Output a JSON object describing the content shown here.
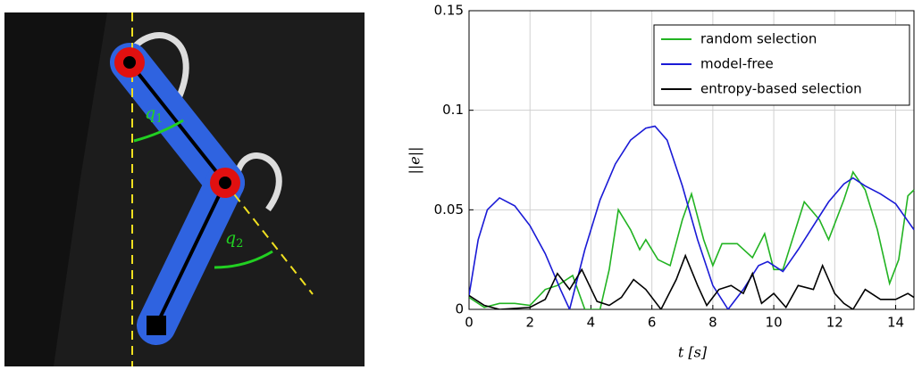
{
  "photo": {
    "joint_labels": [
      {
        "symbol": "q",
        "index": "1"
      },
      {
        "symbol": "q",
        "index": "2"
      }
    ]
  },
  "chart_data": {
    "type": "line",
    "x_label": "t [s]",
    "y_label": "||e||",
    "xlim": [
      0,
      14.6
    ],
    "ylim": [
      0,
      0.15
    ],
    "xticks": [
      0,
      2,
      4,
      6,
      8,
      10,
      12,
      14
    ],
    "yticks": [
      0,
      0.05,
      0.1,
      0.15
    ],
    "grid": true,
    "legend": "upper right",
    "series": [
      {
        "name": "random selection",
        "color": "#22b322",
        "x": [
          0,
          0.5,
          1,
          1.5,
          2,
          2.5,
          2.9,
          3.4,
          3.8,
          4.3,
          4.6,
          4.9,
          5.3,
          5.6,
          5.8,
          6.2,
          6.6,
          7.0,
          7.3,
          7.7,
          8.0,
          8.3,
          8.8,
          9.3,
          9.7,
          10.0,
          10.3,
          11.0,
          11.5,
          11.8,
          12.3,
          12.6,
          13.0,
          13.4,
          13.8,
          14.1,
          14.4,
          14.6
        ],
        "values": [
          0.006,
          0.001,
          0.003,
          0.003,
          0.002,
          0.01,
          0.012,
          0.017,
          0.0,
          0.0,
          0.02,
          0.05,
          0.04,
          0.03,
          0.035,
          0.025,
          0.022,
          0.045,
          0.058,
          0.035,
          0.022,
          0.033,
          0.033,
          0.026,
          0.038,
          0.02,
          0.02,
          0.054,
          0.045,
          0.035,
          0.055,
          0.069,
          0.06,
          0.04,
          0.013,
          0.025,
          0.057,
          0.06
        ]
      },
      {
        "name": "model-free",
        "color": "#1a1ad6",
        "x": [
          0,
          0.3,
          0.6,
          1.0,
          1.5,
          2.0,
          2.5,
          3.0,
          3.3,
          3.8,
          4.3,
          4.8,
          5.3,
          5.8,
          6.1,
          6.5,
          7.0,
          7.5,
          8.0,
          8.5,
          9.0,
          9.5,
          9.8,
          10.3,
          10.8,
          11.3,
          11.8,
          12.3,
          12.6,
          13.0,
          13.5,
          14.0,
          14.6
        ],
        "values": [
          0.007,
          0.035,
          0.05,
          0.056,
          0.052,
          0.042,
          0.028,
          0.01,
          0.0,
          0.03,
          0.055,
          0.073,
          0.085,
          0.091,
          0.092,
          0.085,
          0.062,
          0.035,
          0.012,
          0.0,
          0.01,
          0.022,
          0.024,
          0.019,
          0.03,
          0.042,
          0.054,
          0.063,
          0.066,
          0.062,
          0.058,
          0.053,
          0.04
        ]
      },
      {
        "name": "entropy-based selection",
        "color": "#000000",
        "x": [
          0,
          0.5,
          1,
          2,
          2.5,
          2.9,
          3.3,
          3.7,
          4.2,
          4.6,
          5.0,
          5.4,
          5.8,
          6.3,
          6.8,
          7.1,
          7.5,
          7.8,
          8.2,
          8.6,
          9.0,
          9.3,
          9.6,
          10.0,
          10.4,
          10.8,
          11.3,
          11.6,
          12.0,
          12.3,
          12.6,
          13.0,
          13.5,
          14.0,
          14.4,
          14.6
        ],
        "values": [
          0.007,
          0.002,
          0.0,
          0.001,
          0.005,
          0.018,
          0.01,
          0.02,
          0.004,
          0.002,
          0.006,
          0.015,
          0.01,
          0.0,
          0.015,
          0.027,
          0.012,
          0.002,
          0.01,
          0.012,
          0.008,
          0.018,
          0.003,
          0.008,
          0.001,
          0.012,
          0.01,
          0.022,
          0.008,
          0.003,
          0.0,
          0.01,
          0.005,
          0.005,
          0.008,
          0.006
        ]
      }
    ]
  }
}
